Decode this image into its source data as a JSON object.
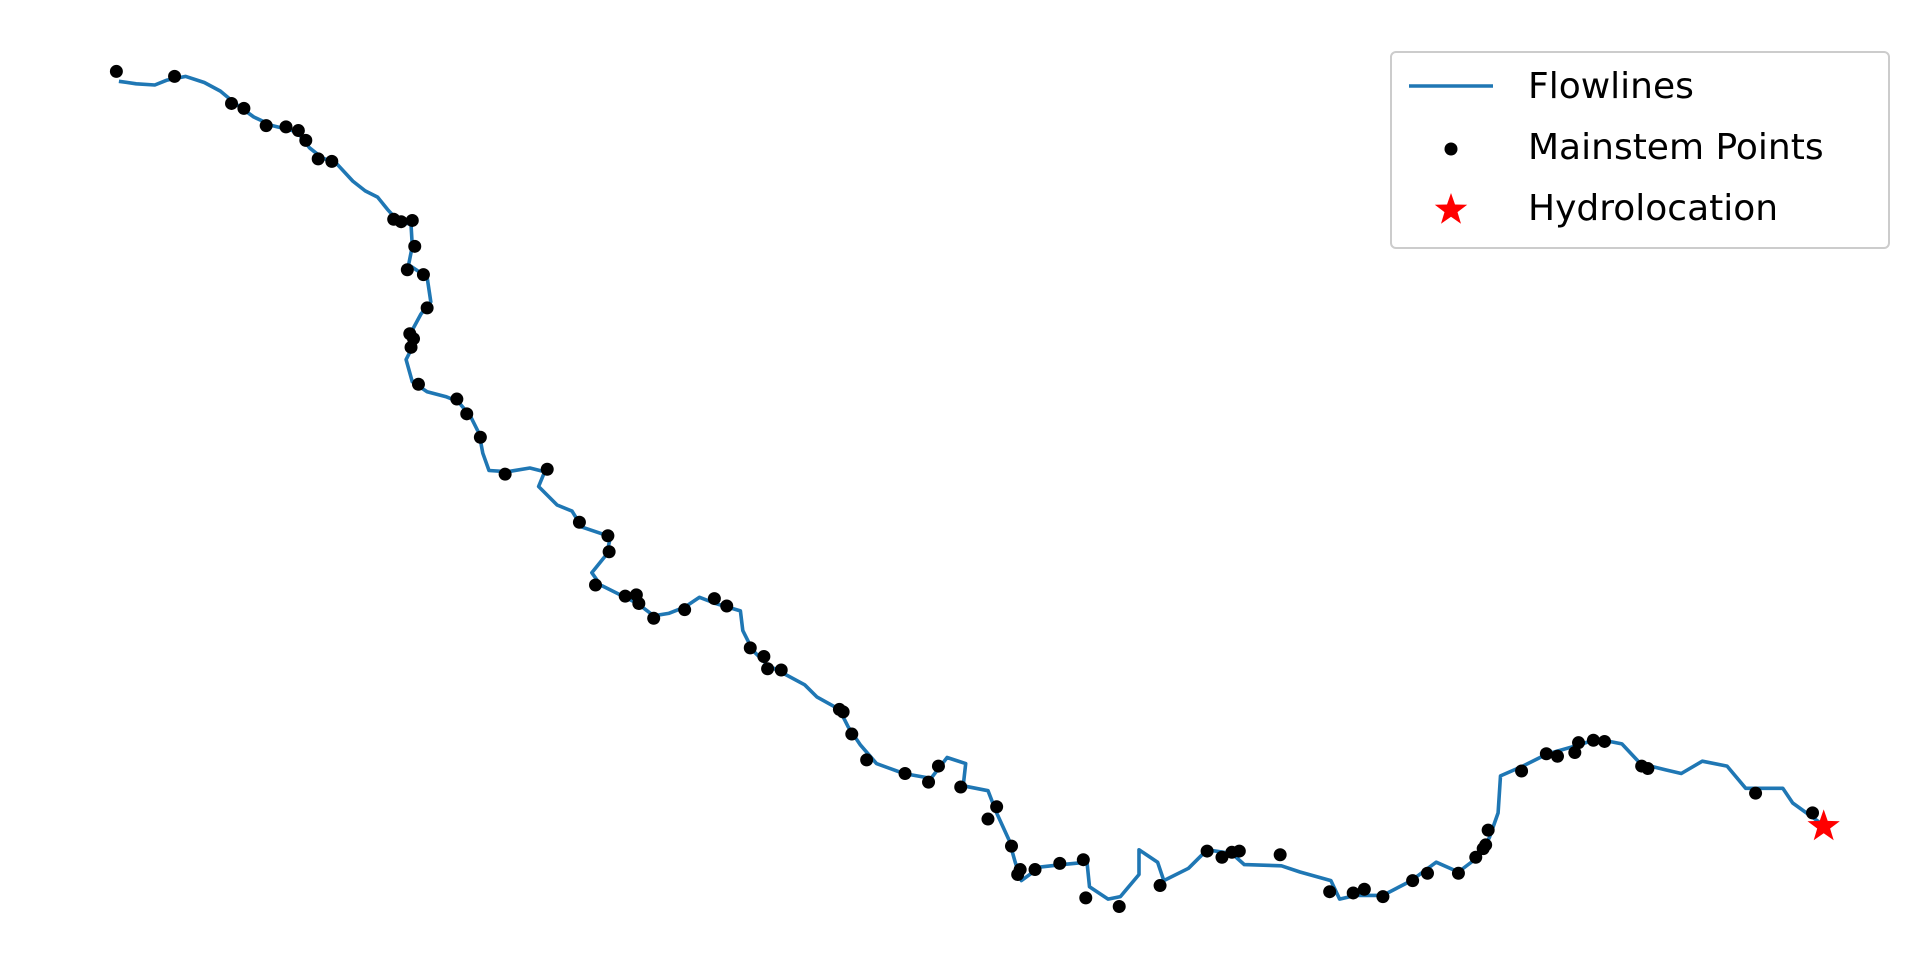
{
  "chart_data": {
    "type": "scatter",
    "xlim": [
      0,
      1550
    ],
    "ylim": [
      790,
      0
    ],
    "legend": "upper right",
    "series": [
      {
        "name": "Flowlines",
        "type": "line",
        "color": "#1f77b4",
        "x": [
          96,
          110,
          125,
          135,
          150,
          165,
          178,
          190,
          205,
          220,
          240,
          250,
          260,
          272,
          285,
          295,
          305,
          313,
          322,
          332,
          333,
          330,
          345,
          348,
          340,
          332,
          335,
          328,
          333,
          345,
          360,
          370,
          380,
          387,
          390,
          395,
          410,
          428,
          440,
          435,
          450,
          462,
          470,
          485,
          493,
          490,
          478,
          485,
          505,
          515,
          528,
          540,
          553,
          565,
          578,
          598,
          600,
          608,
          620,
          635,
          650,
          660,
          678,
          685,
          695,
          708,
          730,
          752,
          765,
          780,
          778,
          798,
          805,
          815,
          820,
          825,
          840,
          858,
          878,
          880,
          895,
          905,
          920,
          920,
          935,
          940,
          960,
          975,
          995,
          1005,
          1035,
          1050,
          1075,
          1082,
          1095,
          1117,
          1140,
          1160,
          1178,
          1195,
          1203,
          1210,
          1212,
          1230,
          1250,
          1275,
          1290,
          1310,
          1325,
          1345,
          1358,
          1375,
          1395,
          1410,
          1425,
          1440,
          1448,
          1470
        ],
        "y": [
          66,
          68,
          69,
          65,
          62,
          67,
          74,
          84,
          95,
          102,
          107,
          120,
          128,
          133,
          147,
          155,
          160,
          170,
          180,
          182,
          200,
          215,
          225,
          245,
          255,
          270,
          278,
          292,
          310,
          318,
          322,
          326,
          338,
          352,
          368,
          382,
          383,
          380,
          383,
          395,
          410,
          415,
          428,
          433,
          436,
          450,
          465,
          475,
          485,
          490,
          500,
          498,
          493,
          485,
          490,
          496,
          512,
          528,
          540,
          548,
          556,
          566,
          576,
          590,
          605,
          620,
          628,
          632,
          615,
          620,
          638,
          642,
          660,
          682,
          700,
          715,
          704,
          702,
          700,
          720,
          730,
          728,
          710,
          690,
          700,
          715,
          705,
          690,
          693,
          702,
          703,
          708,
          715,
          730,
          727,
          727,
          715,
          700,
          708,
          695,
          680,
          660,
          630,
          622,
          612,
          605,
          600,
          604,
          620,
          625,
          628,
          618,
          622,
          640,
          640,
          640,
          652,
          668
        ]
      },
      {
        "name": "Mainstem Points",
        "type": "scatter",
        "color": "#000000",
        "x": [
          94,
          141,
          187,
          197,
          215,
          231,
          241,
          247,
          257,
          268,
          318,
          324,
          333,
          335,
          329,
          342,
          345,
          331,
          334,
          332,
          338,
          369,
          377,
          388,
          408,
          442,
          468,
          491,
          492,
          481,
          505,
          514,
          516,
          528,
          553,
          577,
          587,
          606,
          617,
          620,
          631,
          678,
          681,
          688,
          700,
          731,
          750,
          758,
          776,
          805,
          798,
          817,
          824,
          822,
          836,
          856,
          875,
          877,
          904,
          937,
          975,
          987,
          995,
          1001,
          1034,
          1074,
          1093,
          1102,
          1117,
          1141,
          1153,
          1178,
          1192,
          1198,
          1200,
          1202,
          1229,
          1249,
          1258,
          1272,
          1275,
          1287,
          1296,
          1326,
          1331,
          1418,
          1464
        ],
        "y": [
          58,
          62,
          84,
          88,
          102,
          103,
          106,
          114,
          129,
          131,
          178,
          180,
          179,
          200,
          219,
          223,
          250,
          271,
          275,
          282,
          312,
          324,
          336,
          355,
          385,
          381,
          424,
          435,
          448,
          475,
          484,
          483,
          490,
          502,
          495,
          486,
          492,
          526,
          533,
          543,
          544,
          576,
          578,
          596,
          617,
          628,
          635,
          622,
          639,
          655,
          665,
          687,
          706,
          710,
          706,
          701,
          698,
          729,
          736,
          719,
          691,
          696,
          692,
          691,
          694,
          724,
          725,
          722,
          728,
          715,
          709,
          709,
          696,
          689,
          686,
          674,
          626,
          612,
          614,
          611,
          603,
          601,
          602,
          622,
          624,
          644,
          660
        ]
      },
      {
        "name": "Hydrolocation",
        "type": "scatter",
        "marker": "star",
        "color": "#ff0000",
        "x": [
          1473
        ],
        "y": [
          671
        ]
      }
    ]
  }
}
